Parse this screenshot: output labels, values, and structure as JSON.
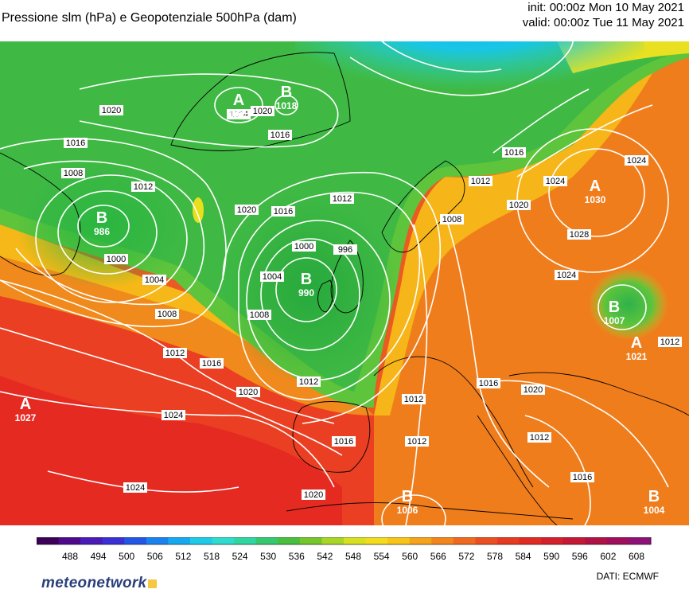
{
  "header": {
    "title": "Pressione slm (hPa) e Geopotenziale 500hPa (dam)",
    "init": "init: 00:00z Mon 10 May 2021",
    "valid": "valid: 00:00z Tue 11 May 2021"
  },
  "pressure_centers": [
    {
      "letter": "A",
      "value": "1025"
    },
    {
      "letter": "B",
      "value": "1018"
    },
    {
      "letter": "B",
      "value": "986"
    },
    {
      "letter": "B",
      "value": "990"
    },
    {
      "letter": "A",
      "value": "1030"
    },
    {
      "letter": "B",
      "value": "1007"
    },
    {
      "letter": "A",
      "value": "1021"
    },
    {
      "letter": "A",
      "value": "1027"
    },
    {
      "letter": "B",
      "value": "1006"
    },
    {
      "letter": "B",
      "value": "1004"
    }
  ],
  "isobar_labels": [
    "1020",
    "1016",
    "1008",
    "1012",
    "1000",
    "1004",
    "1008",
    "1012",
    "1016",
    "1020",
    "1024",
    "1024",
    "1020",
    "1016",
    "1012",
    "1004",
    "1000",
    "996",
    "1008",
    "1012",
    "1016",
    "1020",
    "1024",
    "1008",
    "1012",
    "1016",
    "1020",
    "1024",
    "1028",
    "1024",
    "1024",
    "1020",
    "1016",
    "1012",
    "1016",
    "1012",
    "1012",
    "1016",
    "1012",
    "1020"
  ],
  "colorbar": {
    "ticks": [
      "488",
      "494",
      "500",
      "506",
      "512",
      "518",
      "524",
      "530",
      "536",
      "542",
      "548",
      "554",
      "560",
      "566",
      "572",
      "578",
      "584",
      "590",
      "596",
      "602",
      "608"
    ],
    "colors": [
      "#3d0058",
      "#4e0a8a",
      "#4b1bb8",
      "#3a30d6",
      "#2356e6",
      "#1a82ee",
      "#15aaf0",
      "#1ccbe8",
      "#2ddccc",
      "#2fd6a0",
      "#35c86e",
      "#48bf3e",
      "#74c62a",
      "#a8d624",
      "#d7e01e",
      "#f2dc1c",
      "#f7c417",
      "#f5a419",
      "#f2851c",
      "#ef6a1f",
      "#eb4f21",
      "#e63a21",
      "#e02a22",
      "#d4202a",
      "#c41834",
      "#b01246",
      "#a00f5c",
      "#8e1178"
    ]
  },
  "branding": {
    "name": "meteonetwork",
    "credit": "DATI:  ECMWF"
  }
}
